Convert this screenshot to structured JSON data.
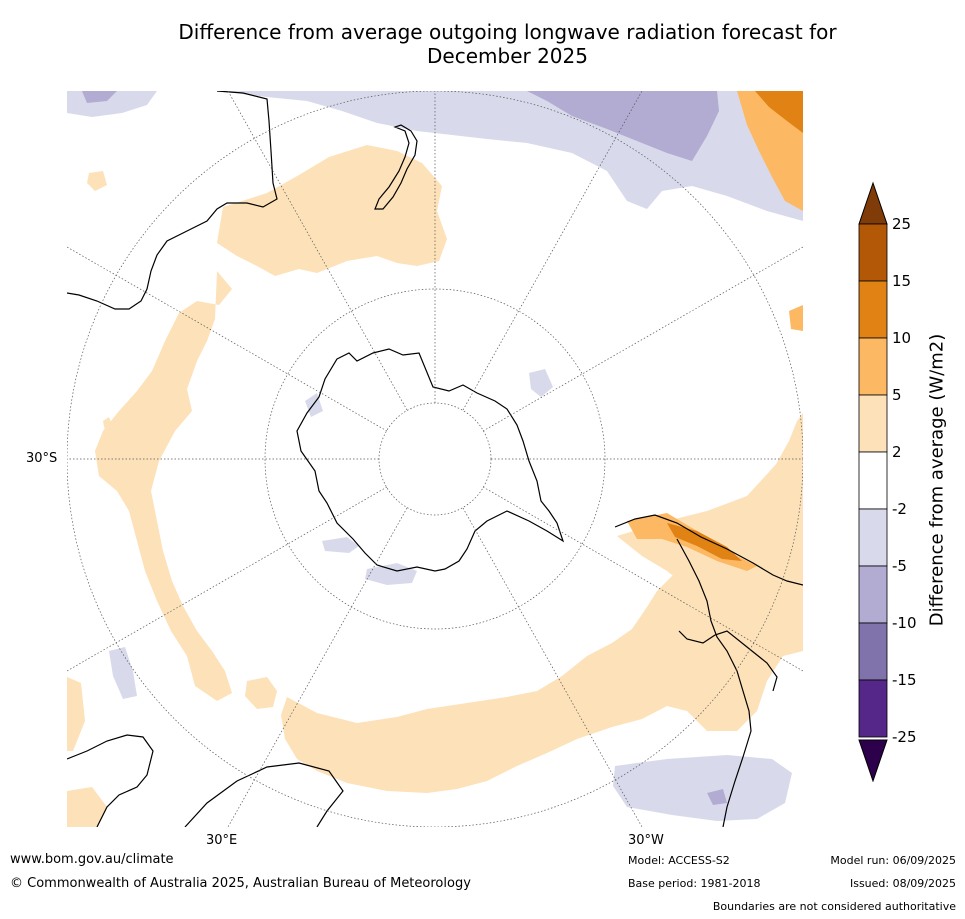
{
  "title": {
    "line1": "Difference from average outgoing longwave radiation forecast for",
    "line2": "December 2025"
  },
  "map": {
    "projection": "south polar stereographic",
    "graticule_labels": {
      "lat_30s": "30°S",
      "lon_30e": "30°E",
      "lon_30w": "30°W"
    },
    "colors": {
      "plus_2_5": "#fde1b8",
      "plus_5_10": "#fdb863",
      "plus_10_15": "#e08214",
      "plus_15_25": "#b35806",
      "plus_over_25": "#7f3b08",
      "minus_2_5": "#d8daeb",
      "minus_5_10": "#b2abd2",
      "minus_10_15": "#8073ac",
      "minus_15_25": "#542788",
      "minus_under_25": "#2d004b",
      "neutral": "#ffffff"
    }
  },
  "colorbar": {
    "label": "Difference from average (W/m2)",
    "ticks": [
      "25",
      "15",
      "10",
      "5",
      "2",
      "-2",
      "-5",
      "-10",
      "-15",
      "-25"
    ],
    "colors": [
      "#b35806",
      "#e08214",
      "#fdb863",
      "#fde1b8",
      "#ffffff",
      "#d8daeb",
      "#b2abd2",
      "#8073ac",
      "#542788"
    ],
    "top_arrow_color": "#7f3b08",
    "bottom_arrow_color": "#2d004b"
  },
  "footer": {
    "website": "www.bom.gov.au/climate",
    "copyright": "© Commonwealth of Australia 2025, Australian Bureau of Meteorology",
    "model": "Model: ACCESS-S2",
    "base_period": "Base period: 1981-2018",
    "model_run": "Model run: 06/09/2025",
    "issued": "Issued: 08/09/2025",
    "disclaimer": "Boundaries are not considered authoritative"
  }
}
